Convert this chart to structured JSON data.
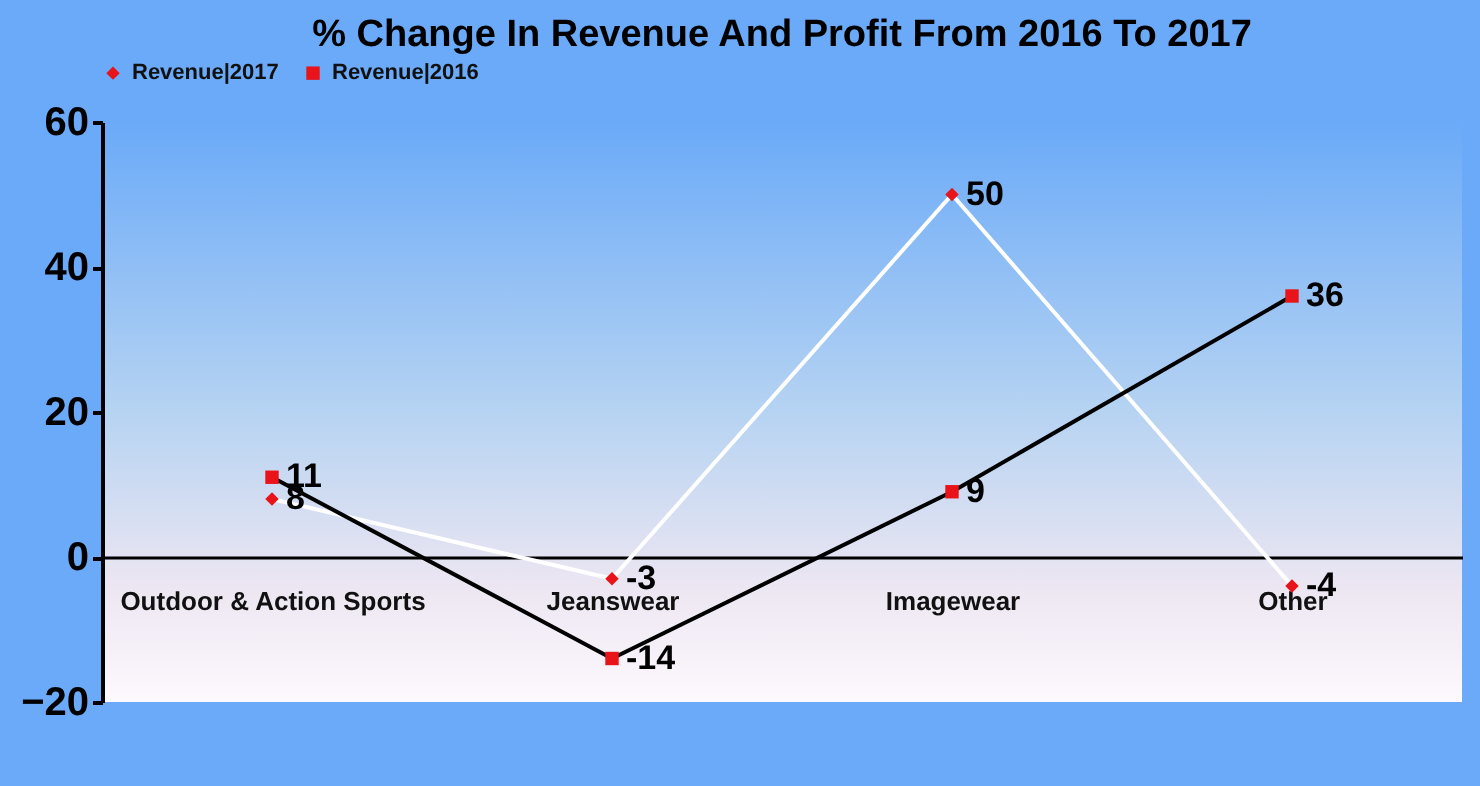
{
  "chart_data": {
    "type": "line",
    "title": "% Change In Revenue And Profit From 2016 To 2017",
    "categories": [
      "Outdoor & Action Sports",
      "Jeanswear",
      "Imagewear",
      "Other"
    ],
    "series": [
      {
        "name": "Revenue|2017",
        "color": "#ffffff",
        "marker": "diamond",
        "values": [
          8,
          -3,
          50,
          -4
        ]
      },
      {
        "name": "Revenue|2016",
        "color": "#000000",
        "marker": "square",
        "values": [
          11,
          -14,
          9,
          36
        ]
      }
    ],
    "ylim": [
      -20,
      60
    ],
    "yticks": [
      -20,
      0,
      20,
      40,
      60
    ],
    "grid": false,
    "legend": "top",
    "data_labels": true
  }
}
